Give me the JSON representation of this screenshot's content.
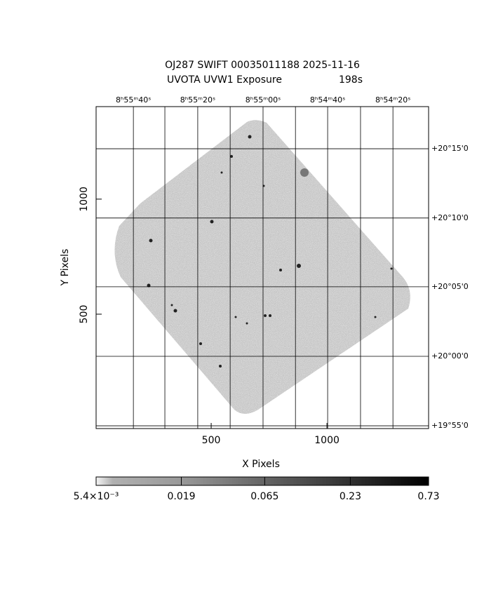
{
  "chart_data": {
    "type": "image",
    "title": "OJ287 SWIFT 00035011188 2025-11-16",
    "subtitle": "UVOTA UVW1 Exposure",
    "exposure": "198s",
    "xlabel": "X Pixels",
    "ylabel": "Y Pixels",
    "xlim": [
      3,
      1439
    ],
    "ylim": [
      3,
      1402
    ],
    "xticks": [
      500,
      1000
    ],
    "yticks": [
      500,
      1000
    ],
    "x2ticks": [
      {
        "value": 164,
        "label": "8ʰ55ᵐ40ˢ"
      },
      {
        "value": 442,
        "label": "8ʰ55ᵐ20ˢ"
      },
      {
        "value": 724,
        "label": "8ʰ55ᵐ00ˢ"
      },
      {
        "value": 1003,
        "label": "8ʰ54ᵐ40ˢ"
      },
      {
        "value": 1285,
        "label": "8ʰ54ᵐ20ˢ"
      }
    ],
    "x2minor": [
      300,
      582,
      864,
      1145
    ],
    "y2ticks": [
      {
        "value": 1219,
        "label": "+20°15'0"
      },
      {
        "value": 918,
        "label": "+20°10'0"
      },
      {
        "value": 619,
        "label": "+20°05'0"
      },
      {
        "value": 317,
        "label": "+20°00'0"
      },
      {
        "value": 15,
        "label": "+19°55'0"
      }
    ],
    "grid": true,
    "colorbar": {
      "log": true,
      "lim": [
        0.0054,
        0.73
      ],
      "ticks": [
        {
          "value": 0.0054,
          "label": "5.4×10⁻³"
        },
        0.019,
        0.065,
        0.23,
        0.73
      ]
    }
  }
}
